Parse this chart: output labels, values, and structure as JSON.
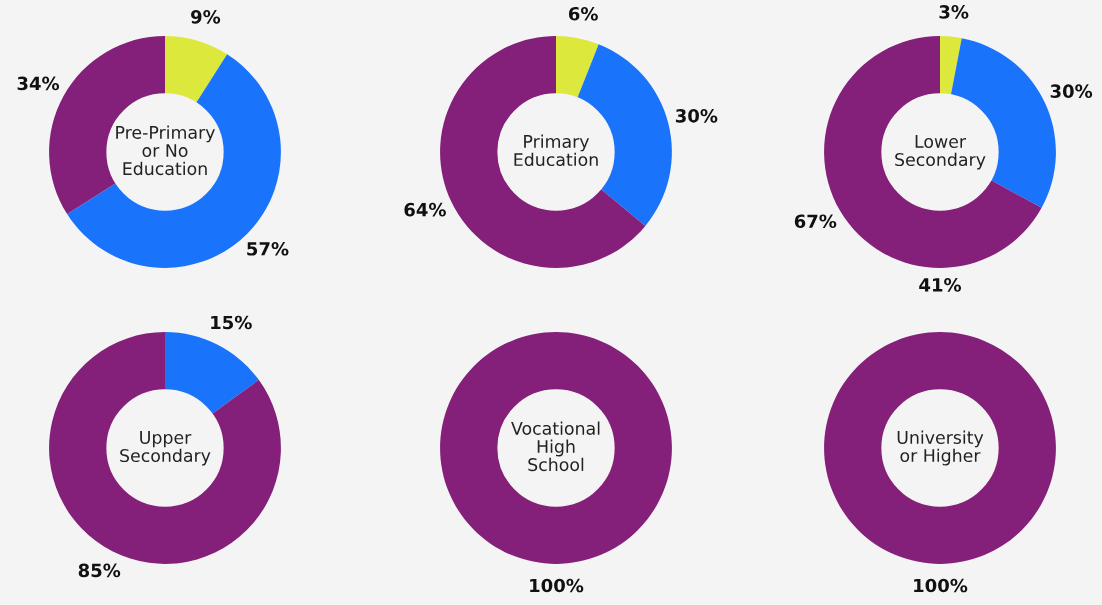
{
  "chart_data": [
    {
      "type": "donut",
      "title": "Pre-Primary\nor No\nEducation",
      "categories": [
        null,
        null,
        null
      ],
      "values": [
        9,
        57,
        34
      ],
      "value_labels": [
        "9%",
        "57%",
        "34%"
      ],
      "colors": [
        "#dde83c",
        "#1a73fb",
        "#841f7a"
      ]
    },
    {
      "type": "donut",
      "title": "Primary\nEducation",
      "categories": [
        null,
        null,
        null
      ],
      "values": [
        6,
        30,
        64
      ],
      "value_labels": [
        "6%",
        "30%",
        "64%"
      ],
      "colors": [
        "#dde83c",
        "#1a73fb",
        "#841f7a"
      ]
    },
    {
      "type": "donut",
      "title": "Lower\nSecondary",
      "categories": [
        null,
        null,
        null
      ],
      "values": [
        3,
        30,
        67
      ],
      "value_labels": [
        "3%",
        "30%",
        "67%"
      ],
      "colors": [
        "#dde83c",
        "#1a73fb",
        "#841f7a"
      ],
      "annotations": [
        "41%"
      ]
    },
    {
      "type": "donut",
      "title": "Upper\nSecondary",
      "categories": [
        null,
        null
      ],
      "values": [
        15,
        85
      ],
      "value_labels": [
        "15%",
        "85%"
      ],
      "colors": [
        "#1a73fb",
        "#841f7a"
      ]
    },
    {
      "type": "donut",
      "title": "Vocational\nHigh\nSchool",
      "categories": [
        null
      ],
      "values": [
        100
      ],
      "value_labels": [
        "100%"
      ],
      "colors": [
        "#841f7a"
      ]
    },
    {
      "type": "donut",
      "title": "University\nor Higher",
      "categories": [
        null
      ],
      "values": [
        100
      ],
      "value_labels": [
        "100%"
      ],
      "colors": [
        "#841f7a"
      ]
    }
  ]
}
